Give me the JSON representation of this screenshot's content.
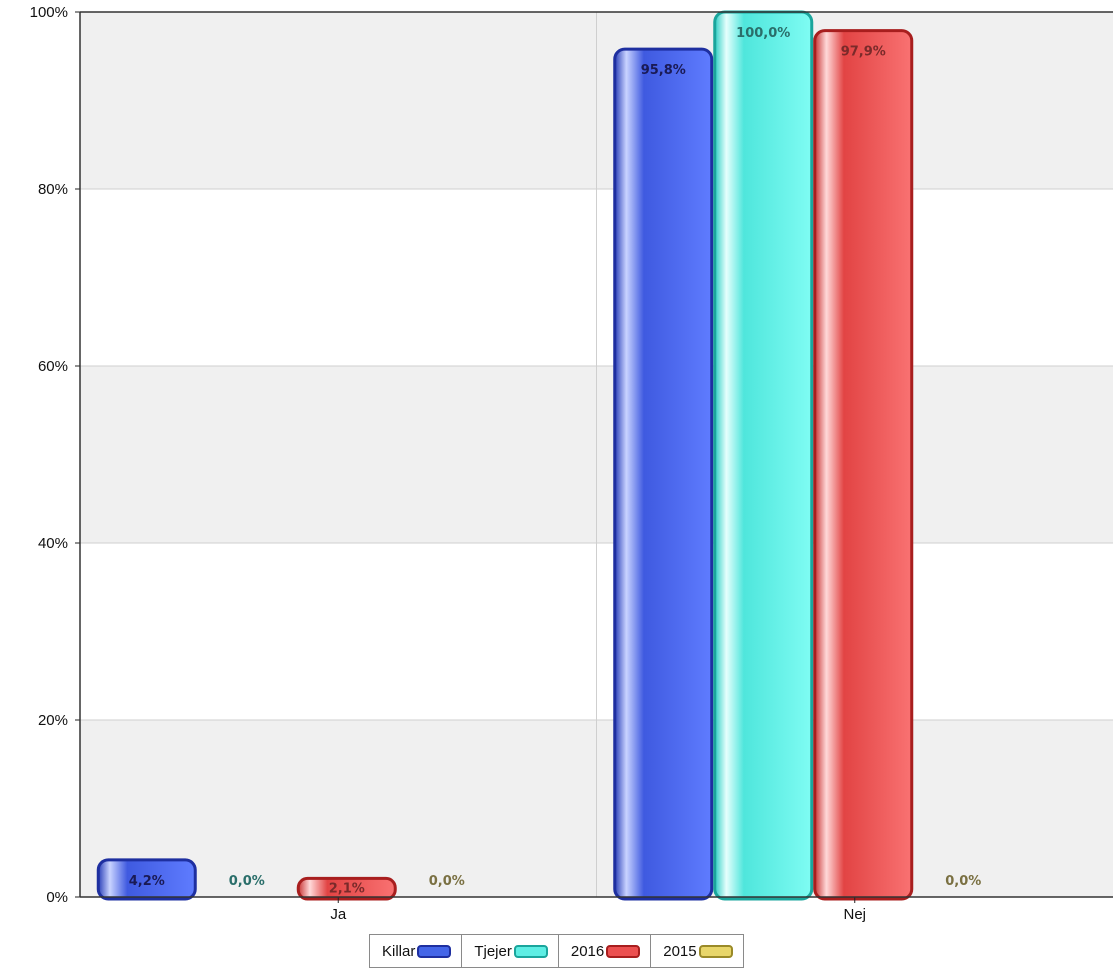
{
  "chart_data": {
    "type": "bar",
    "categories": [
      "Ja",
      "Nej"
    ],
    "series": [
      {
        "name": "Killar",
        "values": [
          4.2,
          95.8
        ],
        "labels": [
          "4,2%",
          "95,8%"
        ],
        "color": "#4466e8",
        "dark": "#1e2fa0",
        "label_color": "#1a1a55"
      },
      {
        "name": "Tjejer",
        "values": [
          0.0,
          100.0
        ],
        "labels": [
          "0,0%",
          "100,0%"
        ],
        "color": "#5eeee4",
        "dark": "#1aa59c",
        "label_color": "#2a6e6a"
      },
      {
        "name": "2016",
        "values": [
          2.1,
          97.9
        ],
        "labels": [
          "2,1%",
          "97,9%"
        ],
        "color": "#ec5050",
        "dark": "#a81e1e",
        "label_color": "#7a2a2a"
      },
      {
        "name": "2015",
        "values": [
          0.0,
          0.0
        ],
        "labels": [
          "0,0%",
          "0,0%"
        ],
        "color": "#e8d66a",
        "dark": "#9a8a28",
        "label_color": "#7a7042"
      }
    ],
    "y_ticks": [
      "0%",
      "20%",
      "40%",
      "60%",
      "80%",
      "100%"
    ],
    "ylim": [
      0,
      100
    ],
    "grid": true,
    "legend_position": "bottom"
  }
}
